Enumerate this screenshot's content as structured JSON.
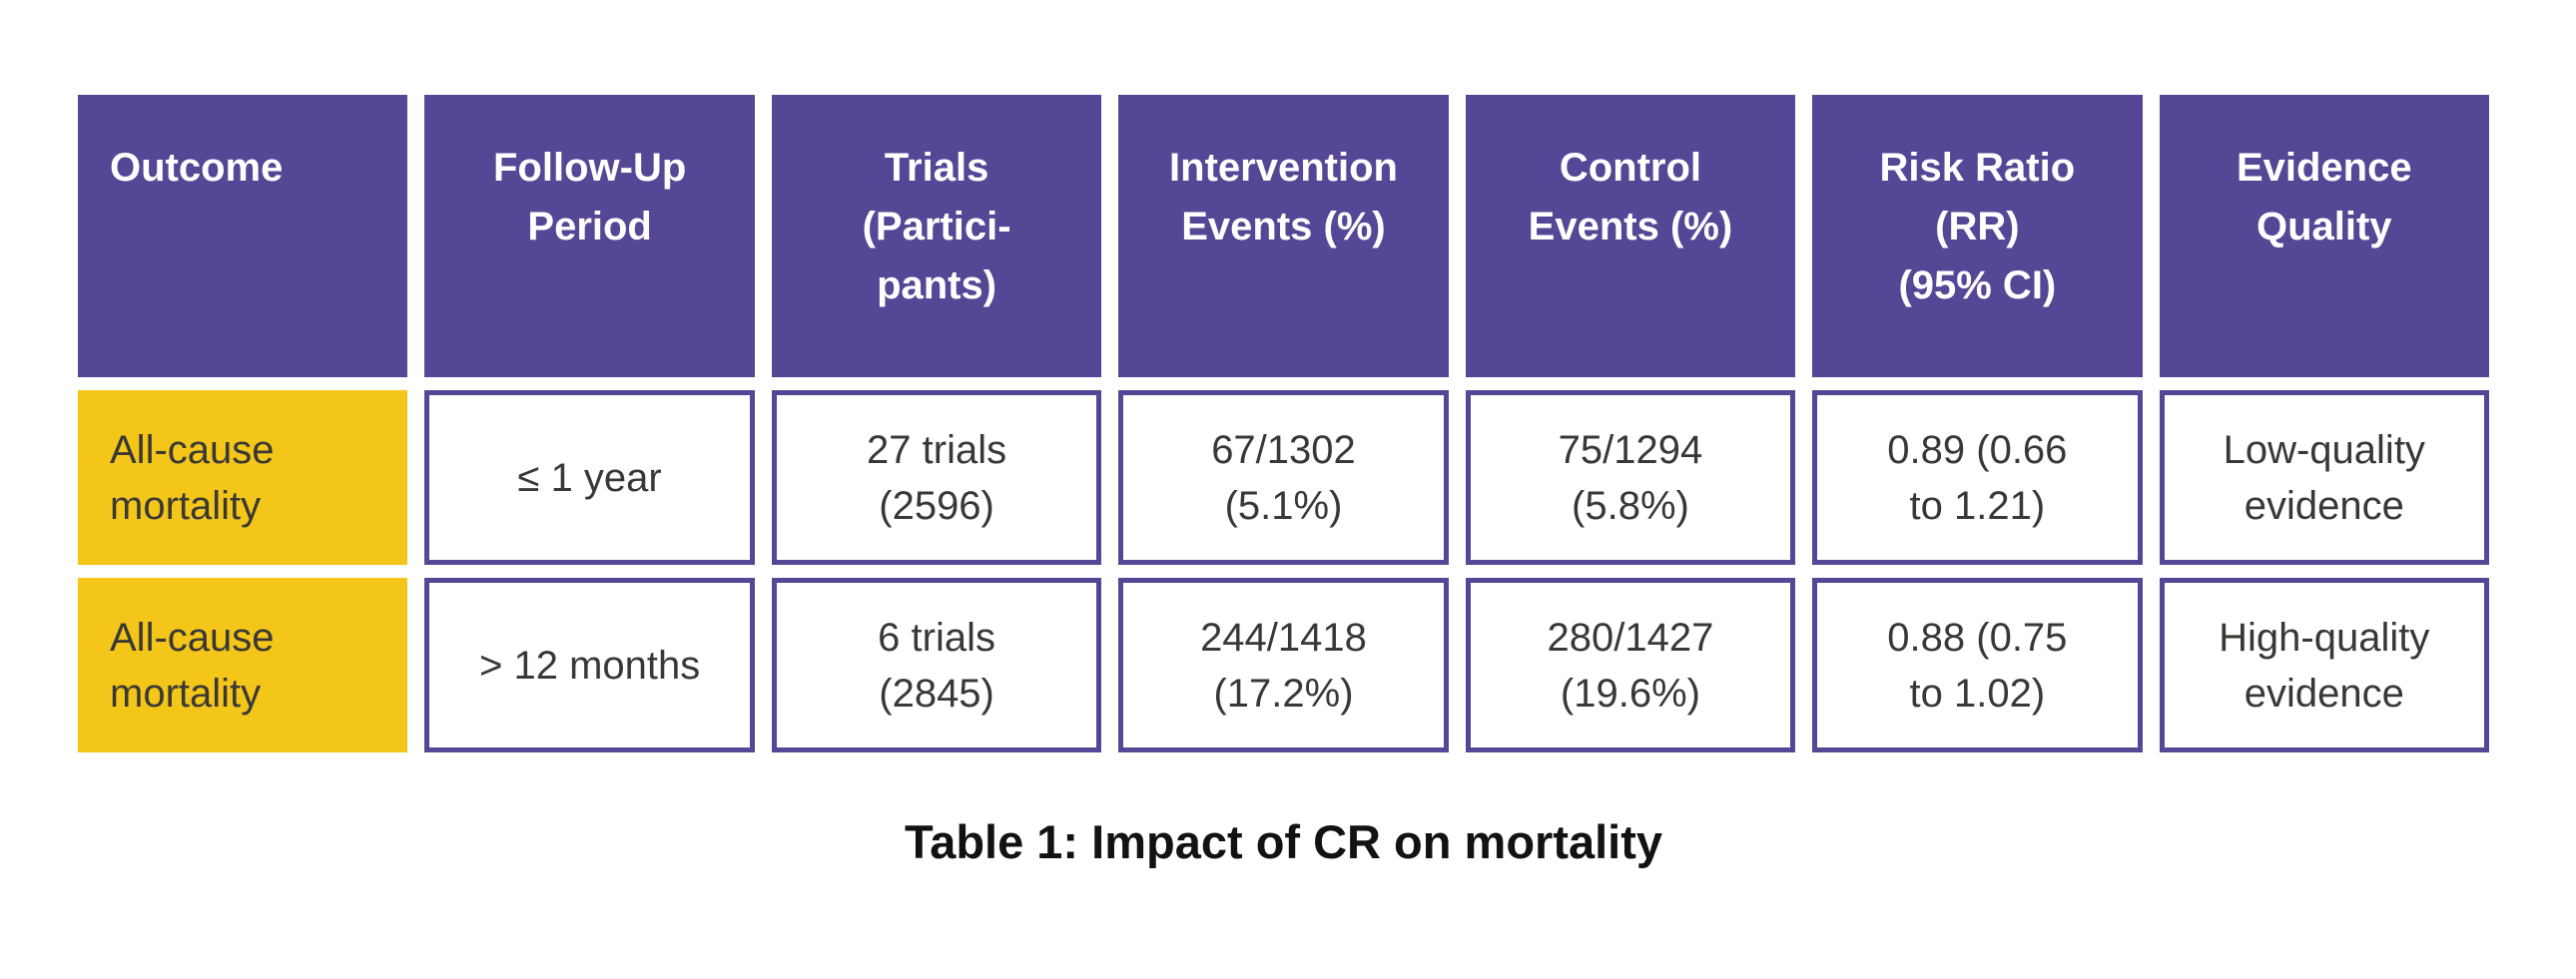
{
  "colors": {
    "header_purple": "#564696",
    "cell_border_purple": "#564696",
    "outcome_yellow": "#f4c61a",
    "header_text": "#ffffff",
    "body_text": "#3a3834",
    "caption_text": "#121212"
  },
  "table": {
    "headers": [
      "Outcome",
      "Follow-Up\nPeriod",
      "Trials\n(Partici-\npants)",
      "Intervention\nEvents (%)",
      "Control\nEvents (%)",
      "Risk Ratio\n(RR)\n(95% CI)",
      "Evidence\nQuality"
    ],
    "rows": [
      {
        "outcome": "All-cause\nmortality",
        "follow_up": "≤ 1 year",
        "trials": "27 trials\n(2596)",
        "intervention_events": "67/1302\n(5.1%)",
        "control_events": "75/1294\n(5.8%)",
        "risk_ratio": "0.89 (0.66\nto 1.21)",
        "evidence_quality": "Low-quality\nevidence"
      },
      {
        "outcome": "All-cause\nmortality",
        "follow_up": "> 12 months",
        "trials": "6 trials\n(2845)",
        "intervention_events": "244/1418\n(17.2%)",
        "control_events": "280/1427\n(19.6%)",
        "risk_ratio": "0.88 (0.75\nto 1.02)",
        "evidence_quality": "High-quality\nevidence"
      }
    ],
    "caption": "Table 1: Impact of CR on mortality"
  }
}
